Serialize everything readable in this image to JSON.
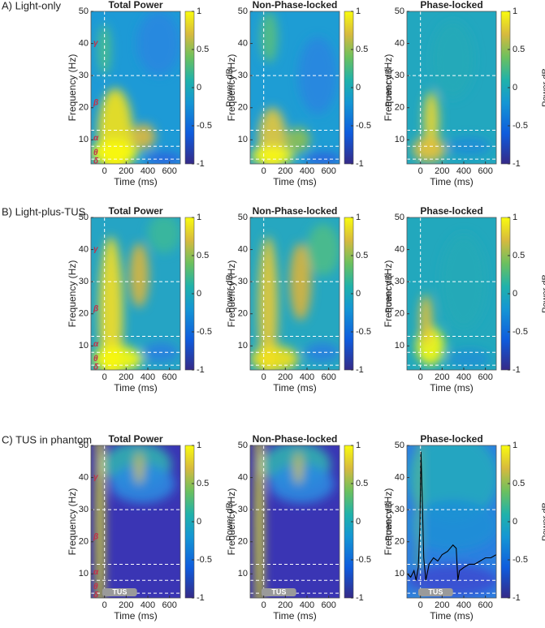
{
  "figure": {
    "rows": [
      {
        "label": "A) Light-only",
        "panels": [
          {
            "title": "Total Power"
          },
          {
            "title": "Non-Phase-locked"
          },
          {
            "title": "Phase-locked"
          }
        ]
      },
      {
        "label": "B) Light-plus-TUS",
        "panels": [
          {
            "title": "Total Power"
          },
          {
            "title": "Non-Phase-locked"
          },
          {
            "title": "Phase-locked"
          }
        ]
      },
      {
        "label": "C) TUS in phantom",
        "panels": [
          {
            "title": "Total Power"
          },
          {
            "title": "Non-Phase-locked"
          },
          {
            "title": "Phase-locked"
          }
        ]
      }
    ],
    "xlabel": "Time (ms)",
    "ylabel": "Frequency (Hz)",
    "colorbar_label": "Power dB",
    "xlim": [
      -125,
      700
    ],
    "xticks": [
      0,
      200,
      400,
      600
    ],
    "ylim": [
      2.5,
      50
    ],
    "yticks": [
      10,
      20,
      30,
      40,
      50
    ],
    "clim": [
      -1,
      1
    ],
    "cticks": [
      -1,
      -0.5,
      0,
      0.5,
      1
    ],
    "band_edges": [
      4,
      8,
      13,
      30
    ],
    "band_labels": [
      "δ",
      "θ",
      "α",
      "β",
      "γ"
    ],
    "tus_label": "TUS",
    "tus_window": [
      -20,
      300
    ],
    "trace": {
      "x": [
        -120,
        -90,
        -60,
        -40,
        -20,
        -5,
        5,
        15,
        30,
        50,
        80,
        120,
        160,
        200,
        250,
        300,
        330,
        345,
        360,
        400,
        450,
        500,
        550,
        600,
        650,
        700
      ],
      "y": [
        10,
        9,
        11,
        8,
        12,
        25,
        48,
        35,
        15,
        8,
        13,
        15,
        14,
        16,
        17,
        19,
        18,
        8,
        11,
        12,
        13,
        13,
        14,
        15,
        15,
        16
      ]
    }
  }
}
